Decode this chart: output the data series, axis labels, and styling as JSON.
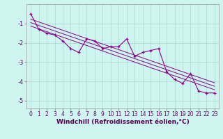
{
  "xlabel": "Windchill (Refroidissement éolien,°C)",
  "background_color": "#cef5ef",
  "grid_color": "#aad8d0",
  "line_color": "#880088",
  "hours": [
    0,
    1,
    2,
    3,
    4,
    5,
    6,
    7,
    8,
    9,
    10,
    11,
    12,
    13,
    14,
    15,
    16,
    17,
    18,
    19,
    20,
    21,
    22,
    23
  ],
  "values": [
    -0.5,
    -1.3,
    -1.5,
    -1.6,
    -1.9,
    -2.3,
    -2.5,
    -1.8,
    -1.9,
    -2.3,
    -2.2,
    -2.2,
    -1.8,
    -2.7,
    -2.5,
    -2.4,
    -2.3,
    -3.5,
    -3.9,
    -4.1,
    -3.6,
    -4.5,
    -4.6,
    -4.6
  ],
  "trend_line1": [
    [
      -0.3,
      -4.8
    ],
    [
      0,
      23
    ]
  ],
  "trend_line2": [
    [
      -0.7,
      -4.6
    ],
    [
      0,
      23
    ]
  ],
  "ylim": [
    -5.4,
    0.0
  ],
  "xlim": [
    -0.5,
    23.5
  ],
  "yticks": [
    -1,
    -2,
    -3,
    -4,
    -5
  ],
  "xticks": [
    0,
    1,
    2,
    3,
    4,
    5,
    6,
    7,
    8,
    9,
    10,
    11,
    12,
    13,
    14,
    15,
    16,
    17,
    18,
    19,
    20,
    21,
    22,
    23
  ],
  "tick_fontsize": 5.5,
  "label_fontsize": 6.5
}
